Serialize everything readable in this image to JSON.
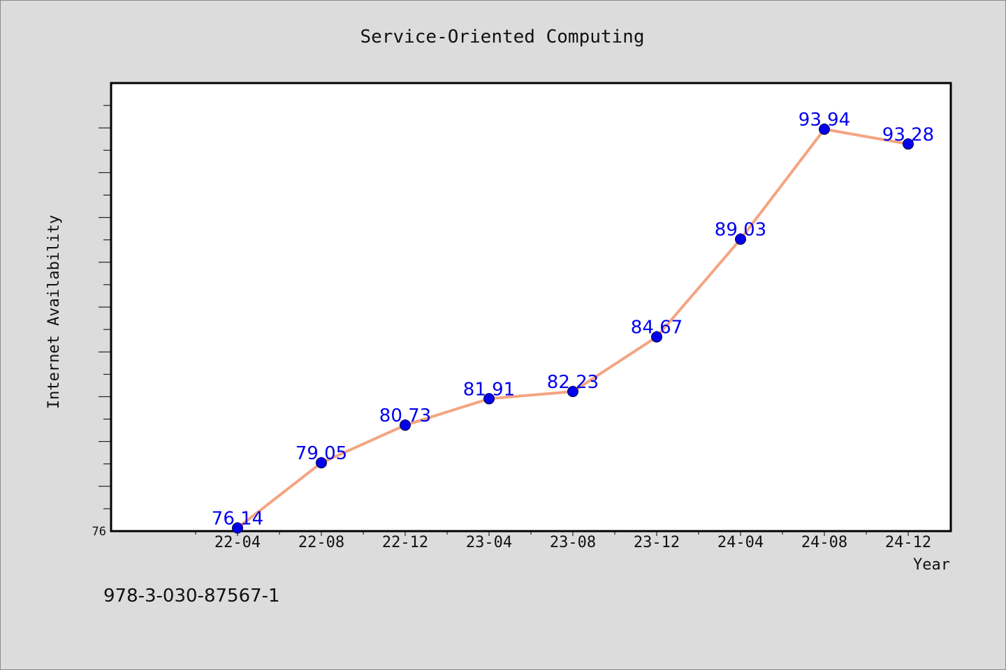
{
  "chart_data": {
    "type": "line",
    "title": "Service-Oriented Computing",
    "xlabel": "Year",
    "ylabel": "Internet Availability",
    "categories": [
      "22-04",
      "22-08",
      "22-12",
      "23-04",
      "23-08",
      "23-12",
      "24-04",
      "24-08",
      "24-12"
    ],
    "series": [
      {
        "values": [
          76.14,
          79.05,
          80.73,
          81.91,
          82.23,
          84.67,
          89.03,
          93.94,
          93.28
        ],
        "labels": [
          "76.14",
          "79.05",
          "80.73",
          "81.91",
          "82.23",
          "84.67",
          "89.03",
          "93.94",
          "93.28"
        ]
      }
    ],
    "ylim": [
      76,
      96
    ],
    "y_ticks": [
      76
    ],
    "y_tick_labels": [
      "76"
    ],
    "grid": false,
    "legend": "none",
    "colors": {
      "line": "#f4a582",
      "marker": "#0000ee",
      "label": "#0000ee",
      "plot_bg": "#ffffff",
      "page_bg": "#dcdcdc"
    }
  },
  "footer_text": "978-3-030-87567-1"
}
